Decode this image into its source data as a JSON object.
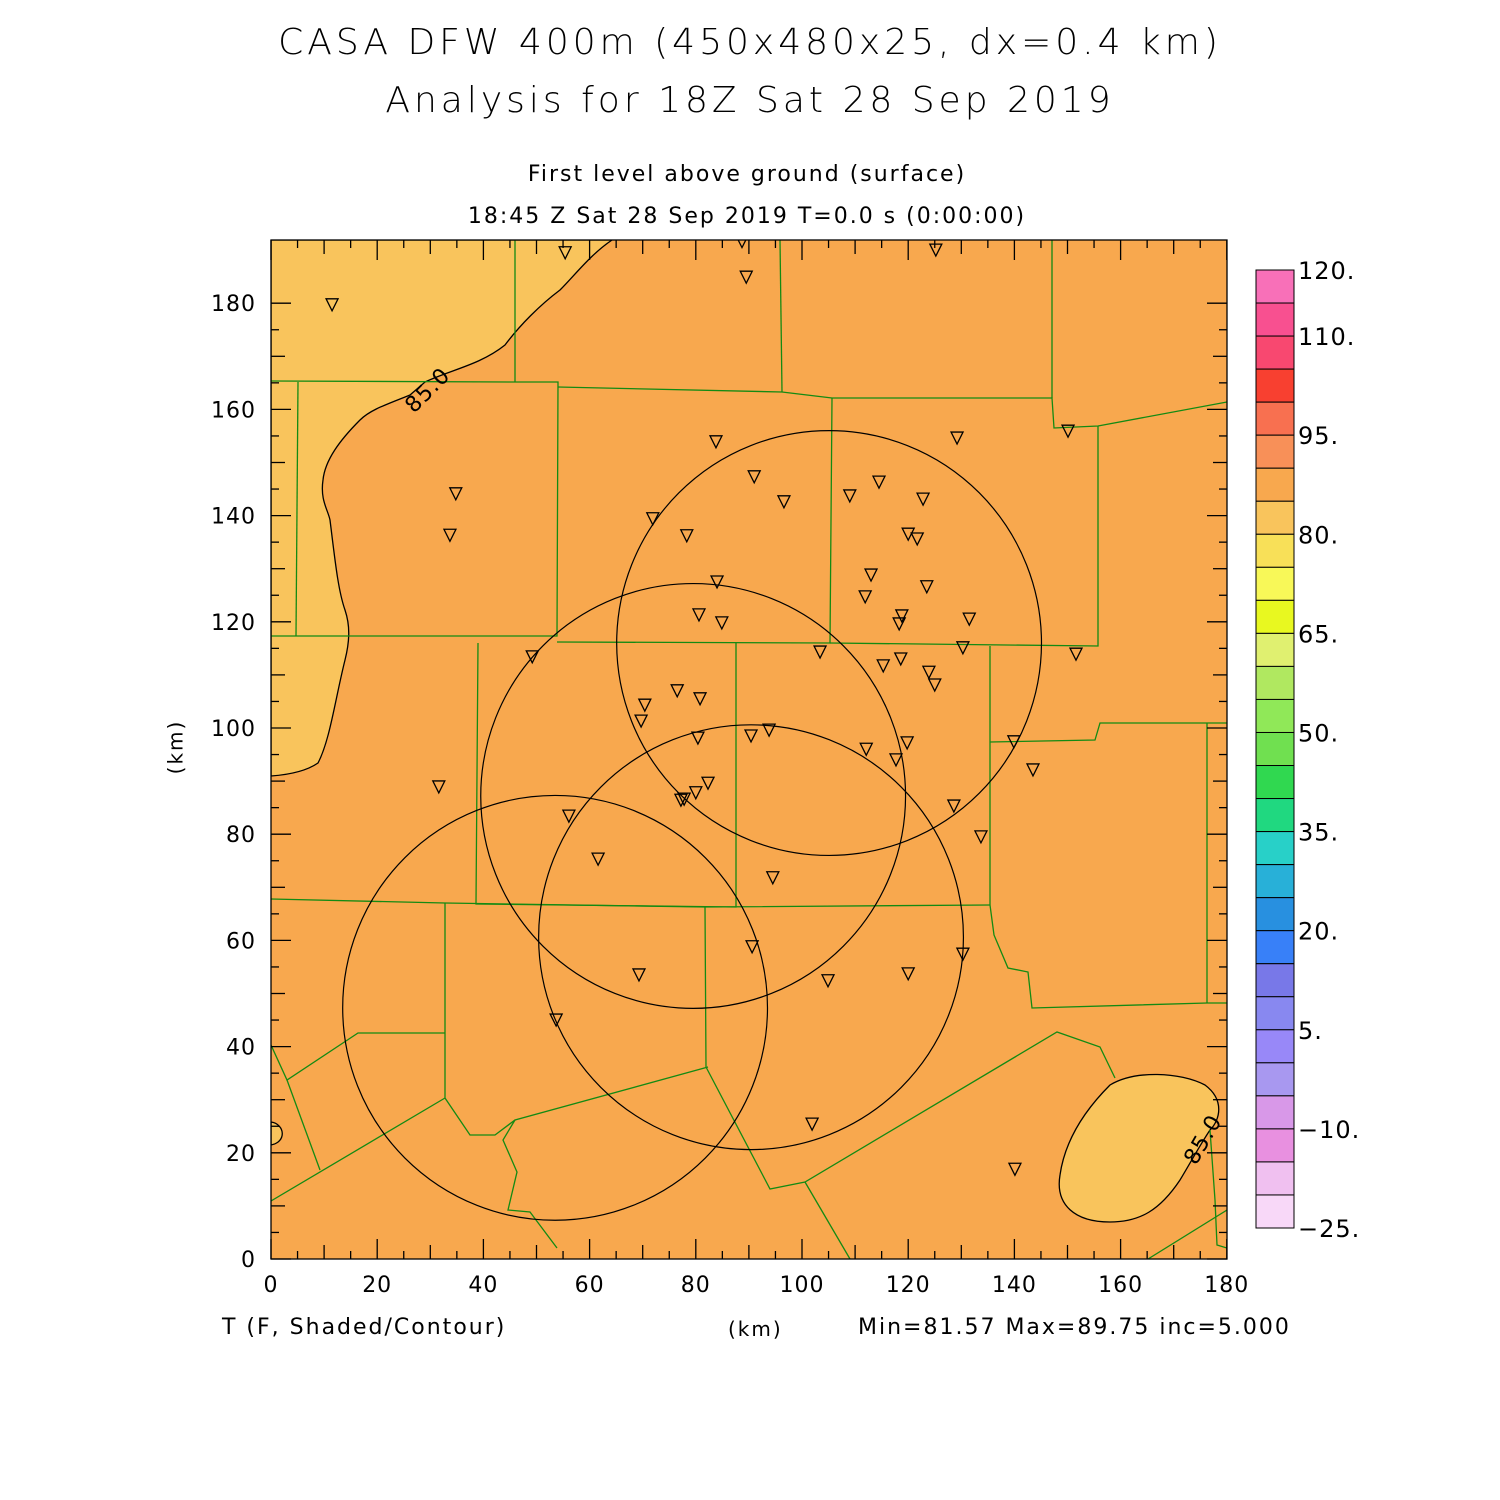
{
  "header": {
    "title_line1": "CASA DFW 400m (450x480x25, dx=0.4 km)",
    "title_line2": "Analysis for 18Z Sat 28 Sep 2019",
    "subtitle_line1": "First level above ground (surface)",
    "subtitle_line2": "18:45 Z Sat 28 Sep 2019    T=0.0 s (0:00:00)"
  },
  "footer": {
    "variable_label": "T (F, Shaded/Contour)",
    "x_unit": "(km)",
    "stats": "Min=81.57 Max=89.75 inc=5.000"
  },
  "chart_data": {
    "type": "heatmap",
    "title": "CASA DFW 400m (450x480x25, dx=0.4 km) Analysis for 18Z Sat 28 Sep 2019",
    "xlabel": "(km)",
    "ylabel": "(km)",
    "xlim": [
      0,
      180
    ],
    "ylim": [
      0,
      192
    ],
    "x_ticks": [
      0,
      20,
      40,
      60,
      80,
      100,
      120,
      140,
      160,
      180
    ],
    "y_ticks": [
      0,
      20,
      40,
      60,
      80,
      100,
      120,
      140,
      160,
      180
    ],
    "x_tick_labels": [
      "0",
      "20",
      "40",
      "60",
      "80",
      "100",
      "120",
      "140",
      "160",
      "180"
    ],
    "y_tick_labels": [
      "0",
      "20",
      "40",
      "60",
      "80",
      "100",
      "120",
      "140",
      "160",
      "180"
    ],
    "contour_labels": [
      "85.0",
      "85.0"
    ],
    "field_colors": {
      "below_85": "#f9c45c",
      "above_85": "#f8a84e",
      "county_lines": "#138a13"
    },
    "colorbar": {
      "min": -25,
      "max": 120,
      "step": 5,
      "labels": [
        "120.",
        "110.",
        "95.",
        "80.",
        "65.",
        "50.",
        "35.",
        "20.",
        "5.",
        "−10.",
        "−25."
      ],
      "label_values": [
        120,
        110,
        95,
        80,
        65,
        50,
        35,
        20,
        5,
        -10,
        -25
      ],
      "colors_top_to_bottom": [
        "#f870b8",
        "#f85090",
        "#f84870",
        "#f84030",
        "#f87050",
        "#f89058",
        "#f8a84e",
        "#f9c45c",
        "#f8e058",
        "#f8f858",
        "#e8f820",
        "#e0f070",
        "#b0e860",
        "#90e858",
        "#70e050",
        "#30d850",
        "#20d880",
        "#28d0c8",
        "#28b0d8",
        "#2890e0",
        "#3880f8",
        "#7878e8",
        "#8888f0",
        "#9888f8",
        "#a898f0",
        "#d898e8",
        "#e890e0",
        "#f0c0f0",
        "#f8d8f8"
      ]
    },
    "radar_rings_km": [
      {
        "x": 105.1,
        "y": 116.0,
        "r": 40
      },
      {
        "x": 79.5,
        "y": 87.2,
        "r": 40
      },
      {
        "x": 90.4,
        "y": 60.6,
        "r": 40
      },
      {
        "x": 53.5,
        "y": 47.3,
        "r": 40
      }
    ],
    "stations_km": [
      [
        11.5,
        179.7
      ],
      [
        55.4,
        189.5
      ],
      [
        88.7,
        191.6
      ],
      [
        89.5,
        184.9
      ],
      [
        125.2,
        190.0
      ],
      [
        83.8,
        153.9
      ],
      [
        91.0,
        147.3
      ],
      [
        96.6,
        142.6
      ],
      [
        150.1,
        155.9
      ],
      [
        129.2,
        154.6
      ],
      [
        34.8,
        144.1
      ],
      [
        33.7,
        136.3
      ],
      [
        71.9,
        139.4
      ],
      [
        78.3,
        136.2
      ],
      [
        109.0,
        143.7
      ],
      [
        114.5,
        146.3
      ],
      [
        122.8,
        143.1
      ],
      [
        120.0,
        136.5
      ],
      [
        121.7,
        135.6
      ],
      [
        84.0,
        127.5
      ],
      [
        113.0,
        128.8
      ],
      [
        111.9,
        124.7
      ],
      [
        123.5,
        126.6
      ],
      [
        80.6,
        121.3
      ],
      [
        84.9,
        119.8
      ],
      [
        118.8,
        121.1
      ],
      [
        118.3,
        119.6
      ],
      [
        131.5,
        120.5
      ],
      [
        49.2,
        113.4
      ],
      [
        103.4,
        114.3
      ],
      [
        130.3,
        115.1
      ],
      [
        115.3,
        111.7
      ],
      [
        118.6,
        113.0
      ],
      [
        123.9,
        110.5
      ],
      [
        125.0,
        108.1
      ],
      [
        151.6,
        113.9
      ],
      [
        70.4,
        104.3
      ],
      [
        69.7,
        101.3
      ],
      [
        76.5,
        107.0
      ],
      [
        80.8,
        105.5
      ],
      [
        80.4,
        98.1
      ],
      [
        90.4,
        98.5
      ],
      [
        93.8,
        99.6
      ],
      [
        112.1,
        96.0
      ],
      [
        119.8,
        97.2
      ],
      [
        117.7,
        94.0
      ],
      [
        139.9,
        97.4
      ],
      [
        143.5,
        92.1
      ],
      [
        31.6,
        88.9
      ],
      [
        56.1,
        83.4
      ],
      [
        82.3,
        89.6
      ],
      [
        80.0,
        87.8
      ],
      [
        77.8,
        86.6
      ],
      [
        77.2,
        86.4
      ],
      [
        128.6,
        85.3
      ],
      [
        133.7,
        79.5
      ],
      [
        61.6,
        75.3
      ],
      [
        94.5,
        71.8
      ],
      [
        90.6,
        58.8
      ],
      [
        130.3,
        57.4
      ],
      [
        69.3,
        53.5
      ],
      [
        104.9,
        52.4
      ],
      [
        120.0,
        53.7
      ],
      [
        53.7,
        45.0
      ],
      [
        101.9,
        25.4
      ],
      [
        140.1,
        16.9
      ]
    ]
  }
}
